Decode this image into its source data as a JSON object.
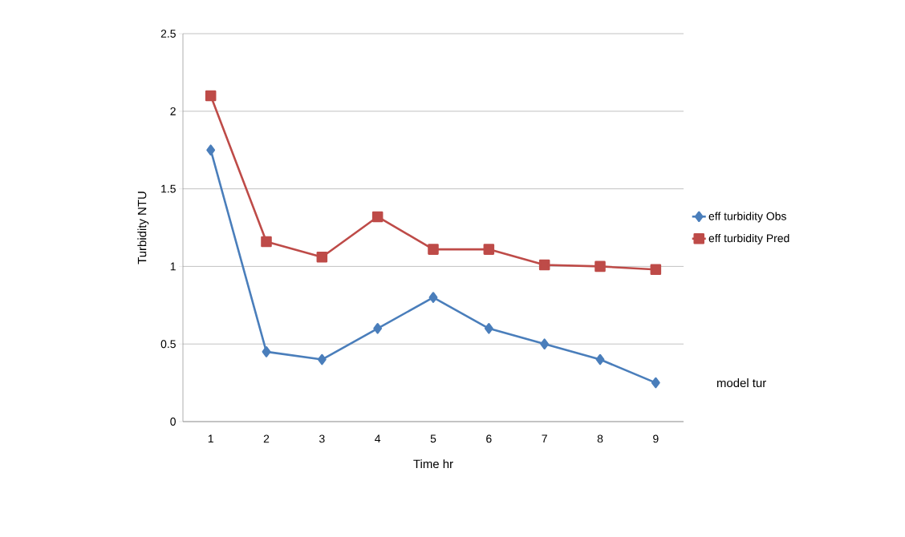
{
  "chart_data": {
    "type": "line",
    "xlabel": "Time hr",
    "ylabel": "Turbidity  NTU",
    "categories": [
      "1",
      "2",
      "3",
      "4",
      "5",
      "6",
      "7",
      "8",
      "9"
    ],
    "series": [
      {
        "name": "eff turbidity Obs",
        "color": "#4a7ebb",
        "marker": "diamond",
        "values": [
          1.75,
          0.45,
          0.4,
          0.6,
          0.8,
          0.6,
          0.5,
          0.4,
          0.25
        ]
      },
      {
        "name": "eff turbidity Pred",
        "color": "#be4b48",
        "marker": "square",
        "values": [
          2.1,
          1.16,
          1.06,
          1.32,
          1.11,
          1.11,
          1.01,
          1.0,
          0.98
        ]
      }
    ],
    "ylim": [
      0,
      2.5
    ],
    "yticks": [
      0,
      0.5,
      1,
      1.5,
      2,
      2.5
    ],
    "grid": "y",
    "legend": "right",
    "annotations": [
      "model   tur"
    ]
  }
}
